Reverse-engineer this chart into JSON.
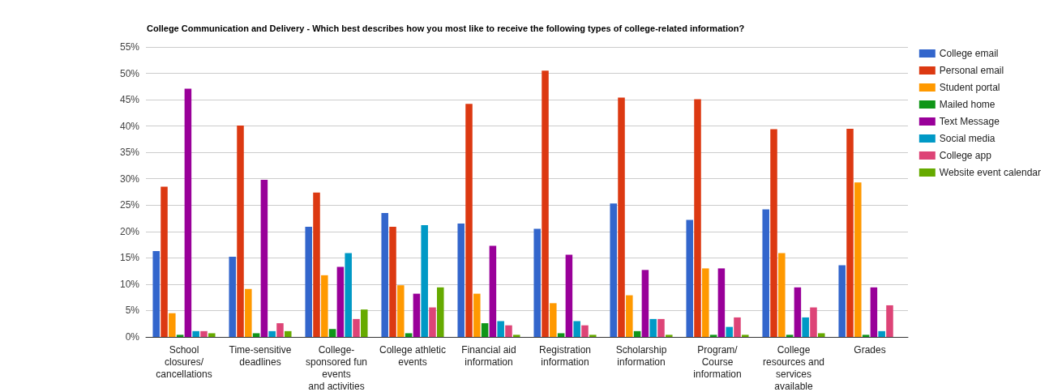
{
  "chart_data": {
    "type": "bar",
    "title": "College Communication and Delivery - Which best describes how you most like to receive the following types of college-related information?",
    "categories": [
      "School\nclosures/\ncancellations",
      "Time-sensitive\ndeadlines",
      "College-\nsponsored fun\nevents\nand activities",
      "College athletic\nevents",
      "Financial aid\ninformation",
      "Registration\ninformation",
      "Scholarship\ninformation",
      "Program/\nCourse\ninformation",
      "College\nresources and\nservices\navailable",
      "Grades"
    ],
    "series": [
      {
        "name": "College email",
        "color": "#3366cc",
        "values": [
          16.3,
          15.2,
          20.9,
          23.5,
          21.5,
          20.5,
          25.3,
          22.2,
          24.2,
          13.6
        ]
      },
      {
        "name": "Personal email",
        "color": "#dc3912",
        "values": [
          28.5,
          40.1,
          27.4,
          20.9,
          44.2,
          50.5,
          45.4,
          45.1,
          39.4,
          39.5
        ]
      },
      {
        "name": "Student portal",
        "color": "#ff9900",
        "values": [
          4.5,
          9.1,
          11.7,
          9.8,
          8.2,
          6.4,
          7.9,
          13.0,
          15.9,
          29.3
        ]
      },
      {
        "name": "Mailed home",
        "color": "#109618",
        "values": [
          0.4,
          0.7,
          1.5,
          0.7,
          2.6,
          0.7,
          1.1,
          0.4,
          0.4,
          0.4
        ]
      },
      {
        "name": "Text Message",
        "color": "#990099",
        "values": [
          47.1,
          29.8,
          13.3,
          8.2,
          17.3,
          15.6,
          12.7,
          13.0,
          9.4,
          9.4
        ]
      },
      {
        "name": "Social media",
        "color": "#0099c6",
        "values": [
          1.1,
          1.1,
          15.9,
          21.2,
          3.0,
          3.0,
          3.4,
          1.9,
          3.7,
          1.1
        ]
      },
      {
        "name": "College app",
        "color": "#dd4477",
        "values": [
          1.1,
          2.6,
          3.4,
          5.6,
          2.2,
          2.2,
          3.4,
          3.7,
          5.6,
          6.0
        ]
      },
      {
        "name": "Website event calendar",
        "color": "#66aa00",
        "values": [
          0.7,
          1.1,
          5.2,
          9.4,
          0.4,
          0.4,
          0.4,
          0.4,
          0.7,
          0.0
        ]
      }
    ],
    "ylim": [
      0,
      55
    ],
    "yticks": [
      {
        "value": 0,
        "label": "0%"
      },
      {
        "value": 5,
        "label": "5%"
      },
      {
        "value": 10,
        "label": "10%"
      },
      {
        "value": 15,
        "label": "15%"
      },
      {
        "value": 20,
        "label": "20%"
      },
      {
        "value": 25,
        "label": "25%"
      },
      {
        "value": 30,
        "label": "30%"
      },
      {
        "value": 35,
        "label": "35%"
      },
      {
        "value": 40,
        "label": "40%"
      },
      {
        "value": 45,
        "label": "45%"
      },
      {
        "value": 50,
        "label": "50%"
      },
      {
        "value": 55,
        "label": "55%"
      }
    ],
    "grid": "y",
    "legend": "right"
  }
}
